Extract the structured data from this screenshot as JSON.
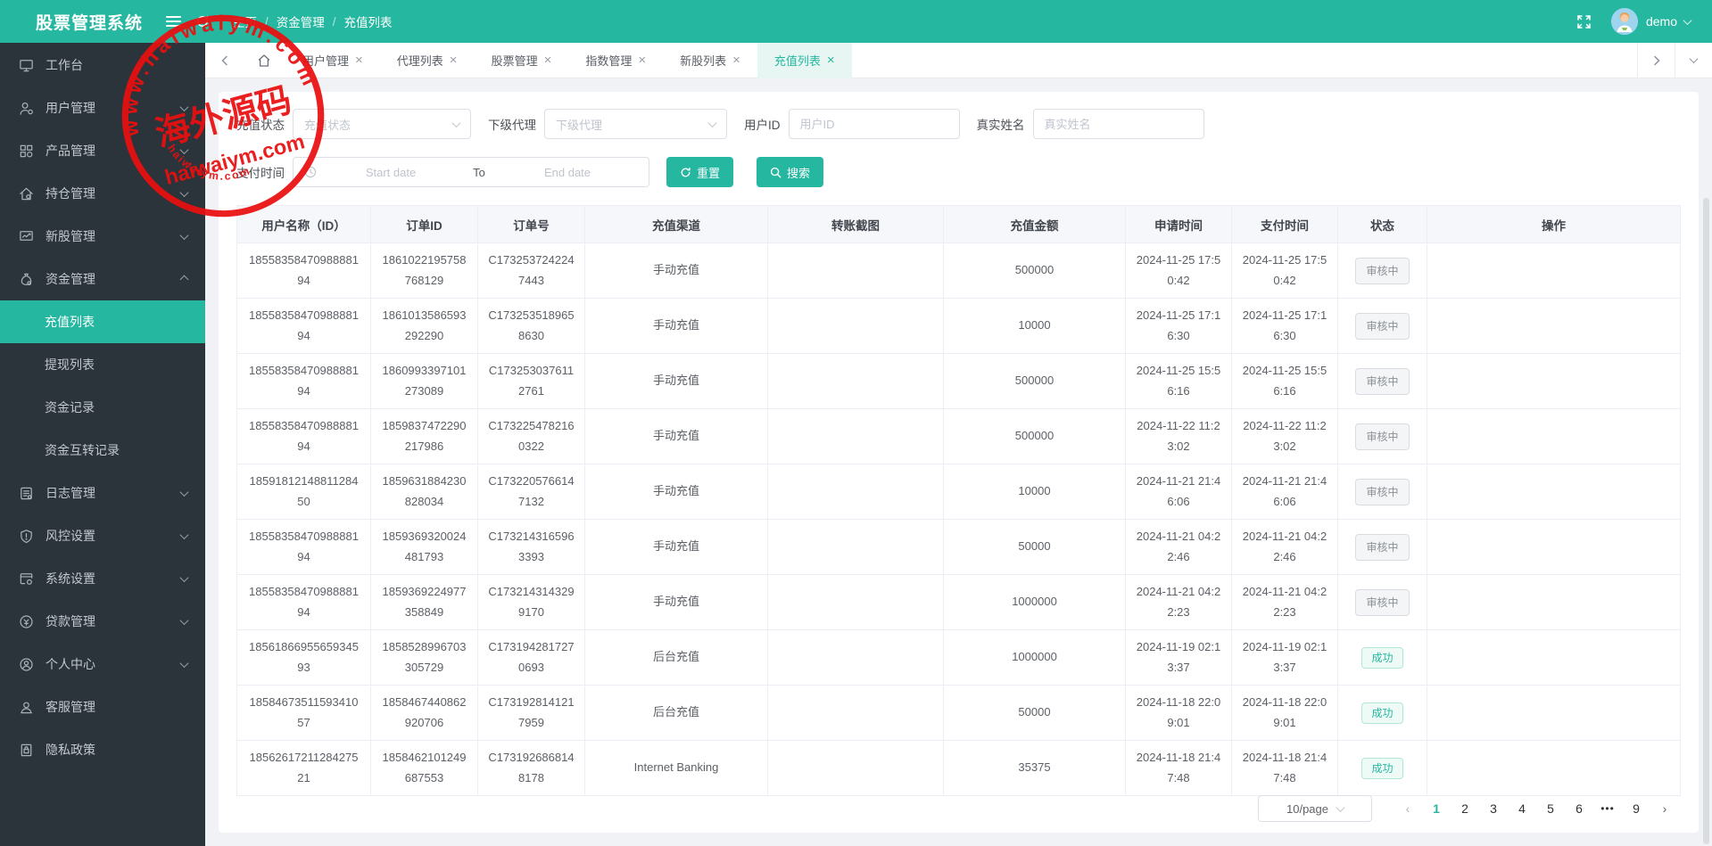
{
  "app": {
    "title": "股票管理系统"
  },
  "colors": {
    "primary": "#26b7a0",
    "watermark_red": "#ea0f0f"
  },
  "topbar": {
    "breadcrumb": [
      "主页",
      "资金管理",
      "充值列表"
    ],
    "username": "demo"
  },
  "sidebar": {
    "items": [
      {
        "name": "workbench",
        "label": "工作台",
        "icon": "monitor-icon",
        "arrow": "none"
      },
      {
        "name": "user-mgmt",
        "label": "用户管理",
        "icon": "user-gear-icon",
        "arrow": "down"
      },
      {
        "name": "product-mgmt",
        "label": "产品管理",
        "icon": "grid-icon",
        "arrow": "down"
      },
      {
        "name": "position-mgmt",
        "label": "持仓管理",
        "icon": "home-gear-icon",
        "arrow": "down"
      },
      {
        "name": "ipo-mgmt",
        "label": "新股管理",
        "icon": "monitor-chart-icon",
        "arrow": "down"
      },
      {
        "name": "fund-mgmt",
        "label": "资金管理",
        "icon": "fund-gear-icon",
        "arrow": "up",
        "children": [
          {
            "name": "recharge-list",
            "label": "充值列表",
            "active": true
          },
          {
            "name": "withdraw-list",
            "label": "提现列表"
          },
          {
            "name": "fund-records",
            "label": "资金记录"
          },
          {
            "name": "fund-transfer-records",
            "label": "资金互转记录"
          }
        ]
      },
      {
        "name": "log-mgmt",
        "label": "日志管理",
        "icon": "log-icon",
        "arrow": "down"
      },
      {
        "name": "risk-settings",
        "label": "风控设置",
        "icon": "risk-icon",
        "arrow": "down"
      },
      {
        "name": "system-settings",
        "label": "系统设置",
        "icon": "system-icon",
        "arrow": "down"
      },
      {
        "name": "loan-mgmt",
        "label": "贷款管理",
        "icon": "loan-icon",
        "arrow": "down"
      },
      {
        "name": "personal-center",
        "label": "个人中心",
        "icon": "profile-icon",
        "arrow": "down"
      },
      {
        "name": "customer-service",
        "label": "客服管理",
        "icon": "service-icon",
        "arrow": "none"
      },
      {
        "name": "privacy-policy",
        "label": "隐私政策",
        "icon": "privacy-icon",
        "arrow": "none"
      }
    ]
  },
  "tabs": [
    {
      "name": "user-mgmt",
      "label": "用户管理",
      "active": false
    },
    {
      "name": "agent-list",
      "label": "代理列表",
      "active": false
    },
    {
      "name": "stock-mgmt",
      "label": "股票管理",
      "active": false
    },
    {
      "name": "index-mgmt",
      "label": "指数管理",
      "active": false
    },
    {
      "name": "ipo-list",
      "label": "新股列表",
      "active": false
    },
    {
      "name": "recharge-list",
      "label": "充值列表",
      "active": true
    }
  ],
  "filters": {
    "recharge_status": {
      "label": "充值状态",
      "placeholder": "充值状态"
    },
    "sub_agent": {
      "label": "下级代理",
      "placeholder": "下级代理"
    },
    "user_id": {
      "label": "用户ID",
      "placeholder": "用户ID",
      "value": ""
    },
    "real_name": {
      "label": "真实姓名",
      "placeholder": "真实姓名",
      "value": ""
    },
    "pay_time": {
      "label": "支付时间",
      "start_placeholder": "Start date",
      "separator": "To",
      "end_placeholder": "End date"
    },
    "reset_label": "重置",
    "search_label": "搜索"
  },
  "table": {
    "columns": [
      "用户名称（ID）",
      "订单ID",
      "订单号",
      "充值渠道",
      "转账截图",
      "充值金额",
      "申请时间",
      "支付时间",
      "状态",
      "操作"
    ],
    "status_success_value": "成功",
    "rows": [
      {
        "user_id": "1855835847098888194",
        "order_id": "1861022195758768129",
        "order_no": "C1732537242247443",
        "channel": "手动充值",
        "screenshot": "",
        "amount": "500000",
        "apply_time": "2024-11-25 17:50:42",
        "pay_time": "2024-11-25 17:50:42",
        "status": "审核中",
        "operation": ""
      },
      {
        "user_id": "1855835847098888194",
        "order_id": "1861013586593292290",
        "order_no": "C1732535189658630",
        "channel": "手动充值",
        "screenshot": "",
        "amount": "10000",
        "apply_time": "2024-11-25 17:16:30",
        "pay_time": "2024-11-25 17:16:30",
        "status": "审核中",
        "operation": ""
      },
      {
        "user_id": "1855835847098888194",
        "order_id": "1860993397101273089",
        "order_no": "C1732530376112761",
        "channel": "手动充值",
        "screenshot": "",
        "amount": "500000",
        "apply_time": "2024-11-25 15:56:16",
        "pay_time": "2024-11-25 15:56:16",
        "status": "审核中",
        "operation": ""
      },
      {
        "user_id": "1855835847098888194",
        "order_id": "1859837472290217986",
        "order_no": "C1732254782160322",
        "channel": "手动充值",
        "screenshot": "",
        "amount": "500000",
        "apply_time": "2024-11-22 11:23:02",
        "pay_time": "2024-11-22 11:23:02",
        "status": "审核中",
        "operation": ""
      },
      {
        "user_id": "1859181214881128450",
        "order_id": "1859631884230828034",
        "order_no": "C1732205766147132",
        "channel": "手动充值",
        "screenshot": "",
        "amount": "10000",
        "apply_time": "2024-11-21 21:46:06",
        "pay_time": "2024-11-21 21:46:06",
        "status": "审核中",
        "operation": ""
      },
      {
        "user_id": "1855835847098888194",
        "order_id": "1859369320024481793",
        "order_no": "C1732143165963393",
        "channel": "手动充值",
        "screenshot": "",
        "amount": "50000",
        "apply_time": "2024-11-21 04:22:46",
        "pay_time": "2024-11-21 04:22:46",
        "status": "审核中",
        "operation": ""
      },
      {
        "user_id": "1855835847098888194",
        "order_id": "1859369224977358849",
        "order_no": "C1732143143299170",
        "channel": "手动充值",
        "screenshot": "",
        "amount": "1000000",
        "apply_time": "2024-11-21 04:22:23",
        "pay_time": "2024-11-21 04:22:23",
        "status": "审核中",
        "operation": ""
      },
      {
        "user_id": "1856186695565934593",
        "order_id": "1858528996703305729",
        "order_no": "C1731942817270693",
        "channel": "后台充值",
        "screenshot": "",
        "amount": "1000000",
        "apply_time": "2024-11-19 02:13:37",
        "pay_time": "2024-11-19 02:13:37",
        "status": "成功",
        "operation": ""
      },
      {
        "user_id": "1858467351159341057",
        "order_id": "1858467440862920706",
        "order_no": "C1731928141217959",
        "channel": "后台充值",
        "screenshot": "",
        "amount": "50000",
        "apply_time": "2024-11-18 22:09:01",
        "pay_time": "2024-11-18 22:09:01",
        "status": "成功",
        "operation": ""
      },
      {
        "user_id": "1856261721128427521",
        "order_id": "1858462101249687553",
        "order_no": "C1731926868148178",
        "channel": "Internet Banking",
        "screenshot": "",
        "amount": "35375",
        "apply_time": "2024-11-18 21:47:48",
        "pay_time": "2024-11-18 21:47:48",
        "status": "成功",
        "operation": ""
      }
    ]
  },
  "pagination": {
    "page_size": "10/page",
    "pages": [
      "1",
      "2",
      "3",
      "4",
      "5",
      "6",
      "•••",
      "9"
    ],
    "active_page": "1"
  },
  "watermark": {
    "arc_text": "www.haiwaiym.com",
    "center_text": "海外源码",
    "sub_text": "haiwaiym.com",
    "bottom_arc_text": "haiwaiym.com"
  }
}
